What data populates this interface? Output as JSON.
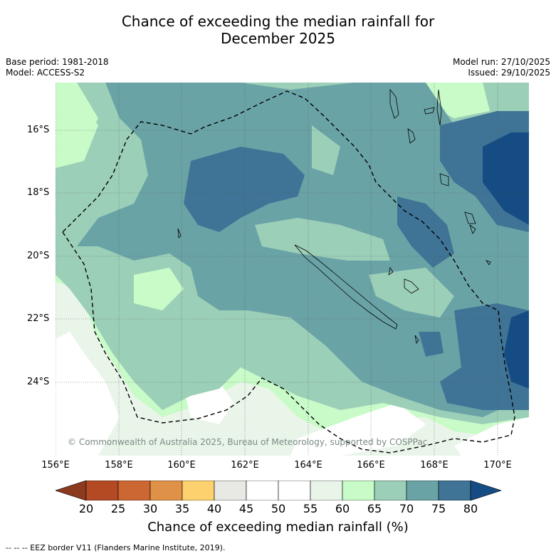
{
  "title": {
    "line1": "Chance of exceeding the median rainfall for",
    "line2": "December 2025"
  },
  "meta": {
    "base_period": "Base period: 1981-2018",
    "model": "Model: ACCESS-S2",
    "model_run": "Model run: 27/10/2025",
    "issued": "Issued: 29/10/2025"
  },
  "axes": {
    "lat_labels": [
      "16°S",
      "18°S",
      "20°S",
      "22°S",
      "24°S"
    ],
    "lon_labels": [
      "156°E",
      "158°E",
      "160°E",
      "162°E",
      "164°E",
      "166°E",
      "168°E",
      "170°E"
    ]
  },
  "copyright": "© Commonwealth of Australia 2025, Bureau of Meteorology, supported by COSPPac",
  "colorbar": {
    "label": "Chance of exceeding median rainfall (%)",
    "ticks": [
      "20",
      "25",
      "30",
      "35",
      "40",
      "45",
      "50",
      "55",
      "60",
      "65",
      "70",
      "75",
      "80"
    ],
    "colors": [
      "#8b3a1e",
      "#b34a24",
      "#cc6633",
      "#e09148",
      "#fdd26e",
      "#e8e8e4",
      "#ffffff",
      "#ffffff",
      "#eaf5ea",
      "#c8fbc8",
      "#9ccfb8",
      "#6aa3a6",
      "#3f7496",
      "#154c84"
    ]
  },
  "footnote": "-- -- -- EEZ border V11 (Flanders Marine Institute, 2019)."
}
